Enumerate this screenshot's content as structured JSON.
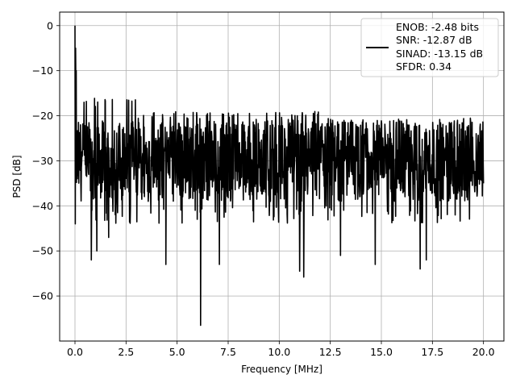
{
  "chart_data": {
    "type": "line",
    "title": "",
    "xlabel": "Frequency [MHz]",
    "ylabel": "PSD [dB]",
    "xlim": [
      -0.75,
      21.0
    ],
    "ylim": [
      -70,
      3
    ],
    "x_ticks": [
      0.0,
      2.5,
      5.0,
      7.5,
      10.0,
      12.5,
      15.0,
      17.5,
      20.0
    ],
    "x_tick_labels": [
      "0.0",
      "2.5",
      "5.0",
      "7.5",
      "10.0",
      "12.5",
      "15.0",
      "17.5",
      "20.0"
    ],
    "y_ticks": [
      0,
      -10,
      -20,
      -30,
      -40,
      -50,
      -60
    ],
    "y_tick_labels": [
      "0",
      "−10",
      "−20",
      "−30",
      "−40",
      "−50",
      "−60"
    ],
    "grid": true,
    "legend_position": "top-right",
    "series": [
      {
        "name": "",
        "color": "#000000",
        "x_range": [
          0.0,
          20.0
        ],
        "envelope_upper_db": -20,
        "envelope_lower_db": -40,
        "dc_peak_db": 0,
        "notable_dips": [
          {
            "x": 0.8,
            "y": -52
          },
          {
            "x": 1.07,
            "y": -50
          },
          {
            "x": 1.65,
            "y": -47
          },
          {
            "x": 4.45,
            "y": -53
          },
          {
            "x": 6.15,
            "y": -66.5
          },
          {
            "x": 7.07,
            "y": -53
          },
          {
            "x": 11.2,
            "y": -55.8
          },
          {
            "x": 11.0,
            "y": -54.5
          },
          {
            "x": 14.7,
            "y": -53
          },
          {
            "x": 16.9,
            "y": -54
          },
          {
            "x": 13.0,
            "y": -51
          },
          {
            "x": 17.2,
            "y": -52
          }
        ]
      }
    ]
  },
  "legend": {
    "lines": [
      "ENOB: -2.48 bits",
      "SNR: -12.87 dB",
      "SINAD: -13.15 dB",
      "SFDR: 0.34"
    ]
  }
}
